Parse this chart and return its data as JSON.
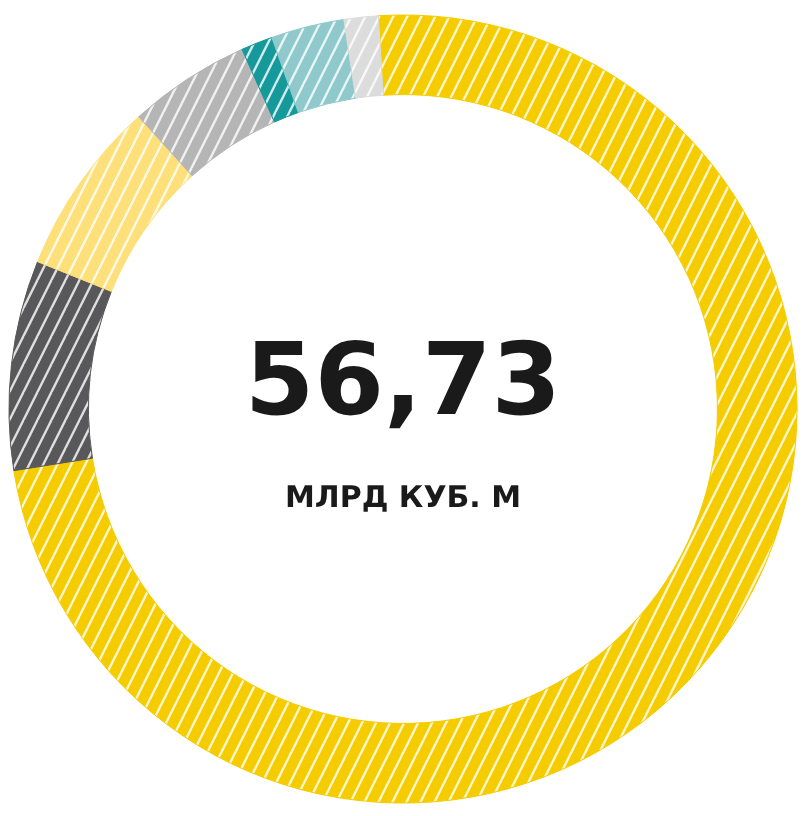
{
  "chart_data": {
    "type": "donut",
    "title": "56,73",
    "subtitle": "МЛРД КУБ. М",
    "categories": [
      null,
      null,
      null,
      null,
      null,
      null,
      null
    ],
    "values": [
      73.5,
      8.6,
      7.2,
      5.0,
      1.3,
      3.0,
      1.4
    ],
    "colors": [
      "#f5cc00",
      "#58585a",
      "#fde07a",
      "#b5b5b5",
      "#16999a",
      "#8fc9cc",
      "#dcdcdc"
    ]
  }
}
